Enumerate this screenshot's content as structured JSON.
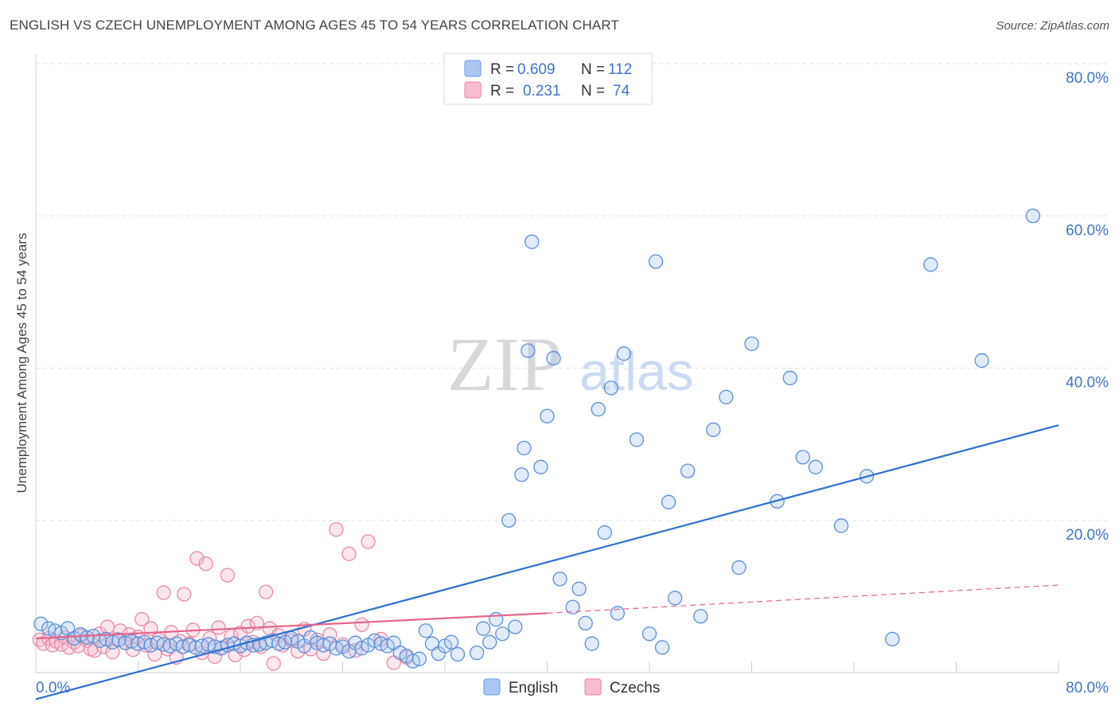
{
  "header": {
    "title": "ENGLISH VS CZECH UNEMPLOYMENT AMONG AGES 45 TO 54 YEARS CORRELATION CHART",
    "source": "Source: ZipAtlas.com"
  },
  "watermark": {
    "zip": "ZIP",
    "atlas": "atlas"
  },
  "legend_box": {
    "rows": [
      {
        "r_label": "R =",
        "r_value": "0.609",
        "n_label": "N =",
        "n_value": "112",
        "color": "#6a9be0",
        "fill": "#aac7f2"
      },
      {
        "r_label": "R =",
        "r_value": "0.231",
        "n_label": "N =",
        "n_value": "74",
        "color": "#e8809e",
        "fill": "#f7bccd"
      }
    ]
  },
  "colors": {
    "english": "#5b8fd9",
    "czech": "#e88aa5",
    "english_line": "#2c6fd1",
    "czech_line": "#e5648c",
    "grid": "#dde0e6",
    "axis_text": "#3f74c9"
  },
  "chart_data": {
    "type": "scatter",
    "title": "ENGLISH VS CZECH UNEMPLOYMENT AMONG AGES 45 TO 54 YEARS CORRELATION CHART",
    "xlabel": "",
    "ylabel": "Unemployment Among Ages 45 to 54 years",
    "xlim": [
      0,
      80
    ],
    "ylim": [
      0,
      80
    ],
    "x_tick_labels": [
      "0.0%",
      "80.0%"
    ],
    "y_tick_values": [
      20,
      40,
      60,
      80
    ],
    "y_tick_labels": [
      "20.0%",
      "40.0%",
      "60.0%",
      "80.0%"
    ],
    "grid": true,
    "legend_position": "bottom-center",
    "series": [
      {
        "name": "English",
        "r": 0.609,
        "n": 112,
        "trend": {
          "x": [
            0,
            80
          ],
          "y": [
            -3.5,
            32.5
          ]
        },
        "points": [
          [
            0.4,
            6.4
          ],
          [
            1.0,
            5.8
          ],
          [
            1.5,
            5.5
          ],
          [
            2.0,
            5.2
          ],
          [
            2.5,
            5.8
          ],
          [
            3.0,
            4.5
          ],
          [
            3.5,
            5.0
          ],
          [
            4.0,
            4.6
          ],
          [
            4.5,
            4.8
          ],
          [
            5.0,
            4.2
          ],
          [
            5.5,
            4.4
          ],
          [
            6.0,
            4.0
          ],
          [
            6.5,
            4.3
          ],
          [
            7.0,
            3.9
          ],
          [
            7.5,
            4.1
          ],
          [
            8.0,
            3.8
          ],
          [
            8.5,
            4.0
          ],
          [
            9.0,
            3.6
          ],
          [
            9.5,
            3.9
          ],
          [
            10.0,
            3.7
          ],
          [
            10.5,
            3.5
          ],
          [
            11.0,
            3.8
          ],
          [
            11.5,
            3.4
          ],
          [
            12.0,
            3.6
          ],
          [
            12.5,
            3.3
          ],
          [
            13.0,
            3.5
          ],
          [
            13.5,
            3.7
          ],
          [
            14.0,
            3.4
          ],
          [
            14.5,
            3.2
          ],
          [
            15.0,
            3.6
          ],
          [
            15.5,
            3.8
          ],
          [
            16.0,
            3.5
          ],
          [
            16.5,
            3.9
          ],
          [
            17.0,
            3.6
          ],
          [
            17.5,
            3.7
          ],
          [
            18.0,
            3.9
          ],
          [
            18.5,
            4.2
          ],
          [
            19.0,
            3.8
          ],
          [
            19.5,
            4.0
          ],
          [
            20.0,
            4.5
          ],
          [
            20.5,
            4.1
          ],
          [
            21.0,
            3.5
          ],
          [
            21.5,
            4.6
          ],
          [
            22.0,
            3.9
          ],
          [
            22.5,
            3.6
          ],
          [
            23.0,
            3.8
          ],
          [
            23.5,
            3.2
          ],
          [
            24.0,
            3.4
          ],
          [
            24.5,
            2.8
          ],
          [
            25.0,
            3.9
          ],
          [
            25.5,
            3.2
          ],
          [
            26.0,
            3.6
          ],
          [
            26.5,
            4.2
          ],
          [
            27.0,
            3.8
          ],
          [
            27.5,
            3.5
          ],
          [
            28.0,
            3.9
          ],
          [
            28.5,
            2.6
          ],
          [
            29.0,
            2.2
          ],
          [
            29.5,
            1.5
          ],
          [
            30.0,
            1.8
          ],
          [
            30.5,
            5.5
          ],
          [
            31.0,
            3.8
          ],
          [
            31.5,
            2.5
          ],
          [
            32.0,
            3.5
          ],
          [
            32.5,
            4.0
          ],
          [
            33.0,
            2.4
          ],
          [
            34.5,
            2.6
          ],
          [
            35.0,
            5.8
          ],
          [
            35.5,
            4.0
          ],
          [
            36.0,
            7.0
          ],
          [
            36.5,
            5.1
          ],
          [
            37.0,
            20.0
          ],
          [
            37.5,
            6.0
          ],
          [
            38.0,
            26.0
          ],
          [
            38.2,
            29.5
          ],
          [
            38.5,
            42.3
          ],
          [
            38.8,
            56.6
          ],
          [
            39.5,
            27.0
          ],
          [
            40.0,
            33.7
          ],
          [
            40.5,
            41.3
          ],
          [
            41.0,
            12.3
          ],
          [
            42.0,
            8.6
          ],
          [
            42.5,
            11.0
          ],
          [
            43.0,
            6.5
          ],
          [
            43.5,
            3.8
          ],
          [
            44.0,
            34.6
          ],
          [
            44.5,
            18.4
          ],
          [
            45.0,
            37.4
          ],
          [
            45.5,
            7.8
          ],
          [
            46.0,
            41.9
          ],
          [
            47.0,
            30.6
          ],
          [
            48.0,
            5.1
          ],
          [
            48.5,
            54.0
          ],
          [
            49.0,
            3.3
          ],
          [
            49.5,
            22.4
          ],
          [
            50.0,
            9.8
          ],
          [
            51.0,
            26.5
          ],
          [
            52.0,
            7.4
          ],
          [
            53.0,
            31.9
          ],
          [
            54.0,
            36.2
          ],
          [
            55.0,
            13.8
          ],
          [
            56.0,
            43.2
          ],
          [
            58.0,
            22.5
          ],
          [
            59.0,
            38.7
          ],
          [
            60.0,
            28.3
          ],
          [
            61.0,
            27.0
          ],
          [
            63.0,
            19.3
          ],
          [
            65.0,
            25.8
          ],
          [
            67.0,
            4.4
          ],
          [
            70.0,
            53.6
          ],
          [
            74.0,
            41.0
          ],
          [
            78.0,
            60.0
          ]
        ]
      },
      {
        "name": "Czechs",
        "r": 0.231,
        "n": 74,
        "trend": {
          "x": [
            0,
            40
          ],
          "y": [
            4.5,
            7.8
          ]
        },
        "trend_dashed": {
          "x": [
            40,
            80
          ],
          "y": [
            7.8,
            11.5
          ]
        },
        "points": [
          [
            0.3,
            4.3
          ],
          [
            0.6,
            3.8
          ],
          [
            1.0,
            4.5
          ],
          [
            1.3,
            3.6
          ],
          [
            1.6,
            4.1
          ],
          [
            2.0,
            3.7
          ],
          [
            2.3,
            4.6
          ],
          [
            2.6,
            3.3
          ],
          [
            3.0,
            4.0
          ],
          [
            3.3,
            3.5
          ],
          [
            3.6,
            4.8
          ],
          [
            4.0,
            4.2
          ],
          [
            4.3,
            3.1
          ],
          [
            4.6,
            2.9
          ],
          [
            5.0,
            5.1
          ],
          [
            5.3,
            3.4
          ],
          [
            5.6,
            6.0
          ],
          [
            6.0,
            2.7
          ],
          [
            6.3,
            4.4
          ],
          [
            6.6,
            5.5
          ],
          [
            7.0,
            3.9
          ],
          [
            7.3,
            5.0
          ],
          [
            7.6,
            3.0
          ],
          [
            8.0,
            4.7
          ],
          [
            8.3,
            7.0
          ],
          [
            8.6,
            3.6
          ],
          [
            9.0,
            5.8
          ],
          [
            9.3,
            2.4
          ],
          [
            9.6,
            4.3
          ],
          [
            10.0,
            10.5
          ],
          [
            10.3,
            3.1
          ],
          [
            10.6,
            5.3
          ],
          [
            11.0,
            2.0
          ],
          [
            11.3,
            4.1
          ],
          [
            11.6,
            10.3
          ],
          [
            12.0,
            3.8
          ],
          [
            12.3,
            5.6
          ],
          [
            12.6,
            15.0
          ],
          [
            13.0,
            2.6
          ],
          [
            13.3,
            14.3
          ],
          [
            13.6,
            4.5
          ],
          [
            14.0,
            2.1
          ],
          [
            14.3,
            5.9
          ],
          [
            14.6,
            3.3
          ],
          [
            15.0,
            12.8
          ],
          [
            15.3,
            4.8
          ],
          [
            15.6,
            2.3
          ],
          [
            16.0,
            5.2
          ],
          [
            16.3,
            3.0
          ],
          [
            16.6,
            6.1
          ],
          [
            17.0,
            4.0
          ],
          [
            17.3,
            6.5
          ],
          [
            17.6,
            3.4
          ],
          [
            18.0,
            10.6
          ],
          [
            18.3,
            5.8
          ],
          [
            18.6,
            1.2
          ],
          [
            19.0,
            4.9
          ],
          [
            19.3,
            3.6
          ],
          [
            20.0,
            4.2
          ],
          [
            20.5,
            2.8
          ],
          [
            21.0,
            5.7
          ],
          [
            21.5,
            3.1
          ],
          [
            22.0,
            4.3
          ],
          [
            22.5,
            2.5
          ],
          [
            23.0,
            5.0
          ],
          [
            23.5,
            18.8
          ],
          [
            24.0,
            3.7
          ],
          [
            24.5,
            15.6
          ],
          [
            25.0,
            2.9
          ],
          [
            25.5,
            6.3
          ],
          [
            26.0,
            17.2
          ],
          [
            27.0,
            4.4
          ],
          [
            28.0,
            1.3
          ],
          [
            29.0,
            2.0
          ]
        ]
      }
    ]
  }
}
